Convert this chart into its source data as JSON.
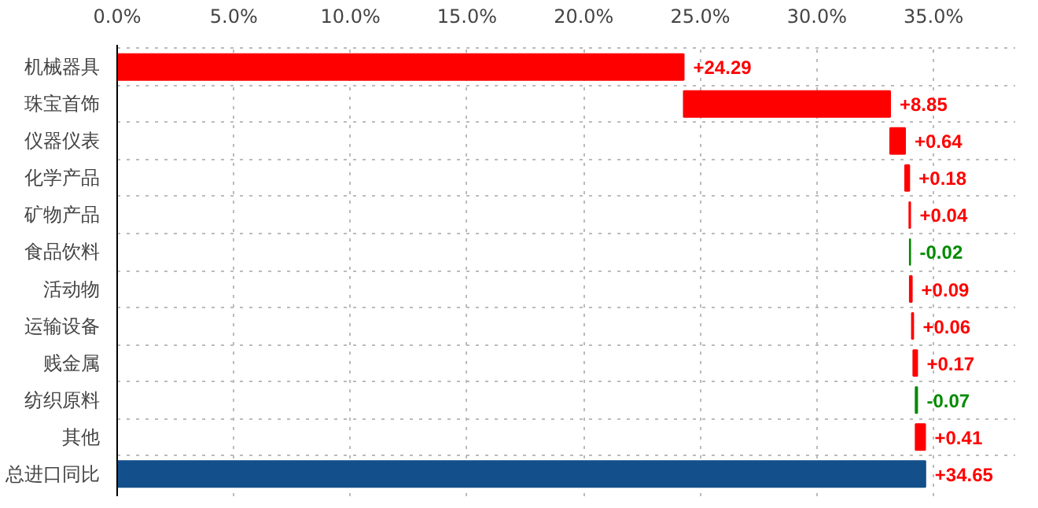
{
  "chart_data": {
    "type": "bar",
    "orientation": "horizontal",
    "categories": [
      "机械器具",
      "珠宝首饰",
      "仪器仪表",
      "化学产品",
      "矿物产品",
      "食品饮料",
      "活动物",
      "运输设备",
      "贱金属",
      "纺织原料",
      "其他",
      "总进口同比"
    ],
    "values": [
      24.29,
      8.85,
      0.64,
      0.18,
      0.04,
      -0.02,
      0.09,
      0.06,
      0.17,
      -0.07,
      0.41,
      34.65
    ],
    "base": [
      0,
      24.29,
      33.14,
      33.78,
      33.96,
      34.0,
      33.98,
      34.07,
      34.13,
      34.3,
      34.23,
      0
    ],
    "colors": [
      "#ff0000",
      "#ff0000",
      "#ff0000",
      "#ff0000",
      "#ff0000",
      "#008a00",
      "#ff0000",
      "#ff0000",
      "#ff0000",
      "#008a00",
      "#ff0000",
      "#134f8a"
    ],
    "value_labels": [
      "+24.29",
      "+8.85",
      "+0.64",
      "+0.18",
      "+0.04",
      "-0.02",
      "+0.09",
      "+0.06",
      "+0.17",
      "-0.07",
      "+0.41",
      "+34.65"
    ],
    "xlim": [
      0,
      38.5
    ],
    "xticks": [
      {
        "value": 0,
        "label": "0.0%"
      },
      {
        "value": 5,
        "label": "5.0%"
      },
      {
        "value": 10,
        "label": "10.0%"
      },
      {
        "value": 15,
        "label": "15.0%"
      },
      {
        "value": 20,
        "label": "20.0%"
      },
      {
        "value": 25,
        "label": "25.0%"
      },
      {
        "value": 30,
        "label": "30.0%"
      },
      {
        "value": 35,
        "label": "35.0%"
      }
    ],
    "grid": true
  }
}
